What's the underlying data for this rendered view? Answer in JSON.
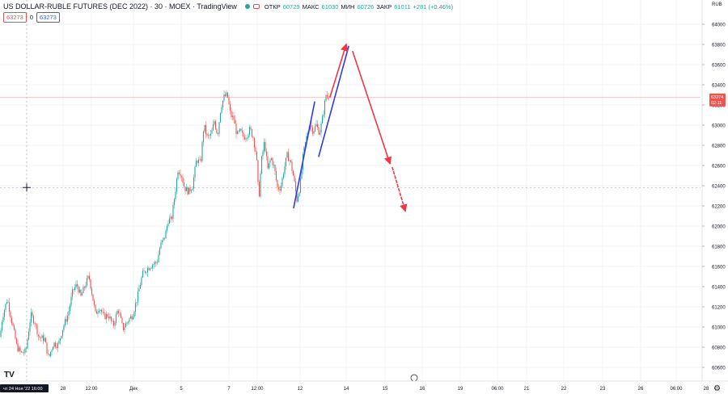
{
  "header": {
    "title": "US DOLLAR-RUBLE FUTURES (DEC 2022) · 30 · MOEX · TradingView",
    "ohlc": [
      {
        "label": "ОТКР",
        "value": "60729"
      },
      {
        "label": "МАКС",
        "value": "61030"
      },
      {
        "label": "МИН",
        "value": "60726"
      },
      {
        "label": "ЗАКР",
        "value": "61011"
      },
      {
        "label": "",
        "value": "+281 (+0.46%)"
      }
    ],
    "sell_price": "63273",
    "spread": "0",
    "buy_price": "63273"
  },
  "price_scale": {
    "unit": "RUB",
    "labels": [
      "64000",
      "63800",
      "63600",
      "63400",
      "63200",
      "63000",
      "62800",
      "62600",
      "62400",
      "62200",
      "62000",
      "61800",
      "61600",
      "61400",
      "61200",
      "61000",
      "60800",
      "60600"
    ],
    "last_price": "63274",
    "countdown": "02:11",
    "crosshair_price": "62382"
  },
  "time_axis": {
    "labels": [
      "28",
      "12:00",
      "Дек",
      "5",
      "7",
      "12:00",
      "12",
      "14",
      "15",
      "16",
      "19",
      "06:00",
      "21",
      "22",
      "23",
      "26",
      "06:00",
      "28"
    ],
    "crosshair_label": "чт 24 Ноя '22   16:00"
  },
  "colors": {
    "up": "#26a69a",
    "down": "#ef5350",
    "accent": "#2962ff",
    "drawing_red": "#f23645",
    "drawing_blue": "#2f3bea"
  },
  "chart_data": {
    "type": "candlestick",
    "title": "US DOLLAR-RUBLE FUTURES (DEC 2022)",
    "interval": "30",
    "exchange": "MOEX",
    "yrange": [
      60460,
      64350
    ],
    "last_price": 63274,
    "crosshair": {
      "price": 62382,
      "time": "чт 24 Ноя '22 16:00"
    },
    "price_path": [
      [
        0,
        60900
      ],
      [
        3,
        61100
      ],
      [
        9,
        61280
      ],
      [
        16,
        61000
      ],
      [
        21,
        60800
      ],
      [
        26,
        60740
      ],
      [
        32,
        60760
      ],
      [
        38,
        61120
      ],
      [
        43,
        61050
      ],
      [
        48,
        60900
      ],
      [
        55,
        60880
      ],
      [
        60,
        60690
      ],
      [
        66,
        60840
      ],
      [
        72,
        60820
      ],
      [
        78,
        61000
      ],
      [
        84,
        61120
      ],
      [
        90,
        61360
      ],
      [
        95,
        61420
      ],
      [
        100,
        61300
      ],
      [
        106,
        61430
      ],
      [
        110,
        61500
      ],
      [
        114,
        61320
      ],
      [
        118,
        61130
      ],
      [
        123,
        61200
      ],
      [
        128,
        61100
      ],
      [
        134,
        61120
      ],
      [
        140,
        61010
      ],
      [
        146,
        61180
      ],
      [
        152,
        60980
      ],
      [
        158,
        61060
      ],
      [
        164,
        61120
      ],
      [
        170,
        61300
      ],
      [
        176,
        61520
      ],
      [
        182,
        61580
      ],
      [
        188,
        61620
      ],
      [
        194,
        61640
      ],
      [
        198,
        61800
      ],
      [
        204,
        61900
      ],
      [
        208,
        62060
      ],
      [
        212,
        62060
      ],
      [
        216,
        62300
      ],
      [
        220,
        62560
      ],
      [
        224,
        62520
      ],
      [
        228,
        62380
      ],
      [
        233,
        62340
      ],
      [
        238,
        62400
      ],
      [
        243,
        62660
      ],
      [
        248,
        62620
      ],
      [
        252,
        63000
      ],
      [
        256,
        62880
      ],
      [
        261,
        62900
      ],
      [
        265,
        63040
      ],
      [
        269,
        62900
      ],
      [
        273,
        63180
      ],
      [
        277,
        63280
      ],
      [
        281,
        63300
      ],
      [
        285,
        63100
      ],
      [
        289,
        63060
      ],
      [
        293,
        62900
      ],
      [
        297,
        62940
      ],
      [
        301,
        62880
      ],
      [
        305,
        62900
      ],
      [
        309,
        62960
      ],
      [
        313,
        62880
      ],
      [
        317,
        62700
      ],
      [
        320,
        62260
      ],
      [
        323,
        62640
      ],
      [
        327,
        62840
      ],
      [
        331,
        62560
      ],
      [
        335,
        62680
      ],
      [
        339,
        62580
      ],
      [
        343,
        62380
      ],
      [
        347,
        62380
      ],
      [
        351,
        62560
      ],
      [
        355,
        62700
      ],
      [
        359,
        62640
      ],
      [
        363,
        62480
      ],
      [
        367,
        62260
      ],
      [
        371,
        62400
      ],
      [
        375,
        62720
      ],
      [
        379,
        62880
      ],
      [
        383,
        63020
      ],
      [
        387,
        62940
      ],
      [
        391,
        63000
      ],
      [
        395,
        62920
      ],
      [
        399,
        63080
      ],
      [
        403,
        63300
      ],
      [
        406,
        63280
      ]
    ],
    "drawings": [
      {
        "type": "trend_line",
        "color": "blue",
        "from": [
          363,
          62180
        ],
        "to": [
          389,
          63230
        ]
      },
      {
        "type": "trend_line",
        "color": "blue",
        "from": [
          394,
          62690
        ],
        "to": [
          431,
          63780
        ]
      },
      {
        "type": "arrow",
        "color": "red",
        "from": [
          408,
          63280
        ],
        "to": [
          428,
          63800
        ]
      },
      {
        "type": "arrow",
        "color": "red",
        "from": [
          436,
          63730
        ],
        "to": [
          482,
          62620
        ]
      },
      {
        "type": "arrow",
        "color": "red",
        "style": "dashed",
        "from": [
          485,
          62580
        ],
        "to": [
          501,
          62150
        ]
      }
    ]
  }
}
